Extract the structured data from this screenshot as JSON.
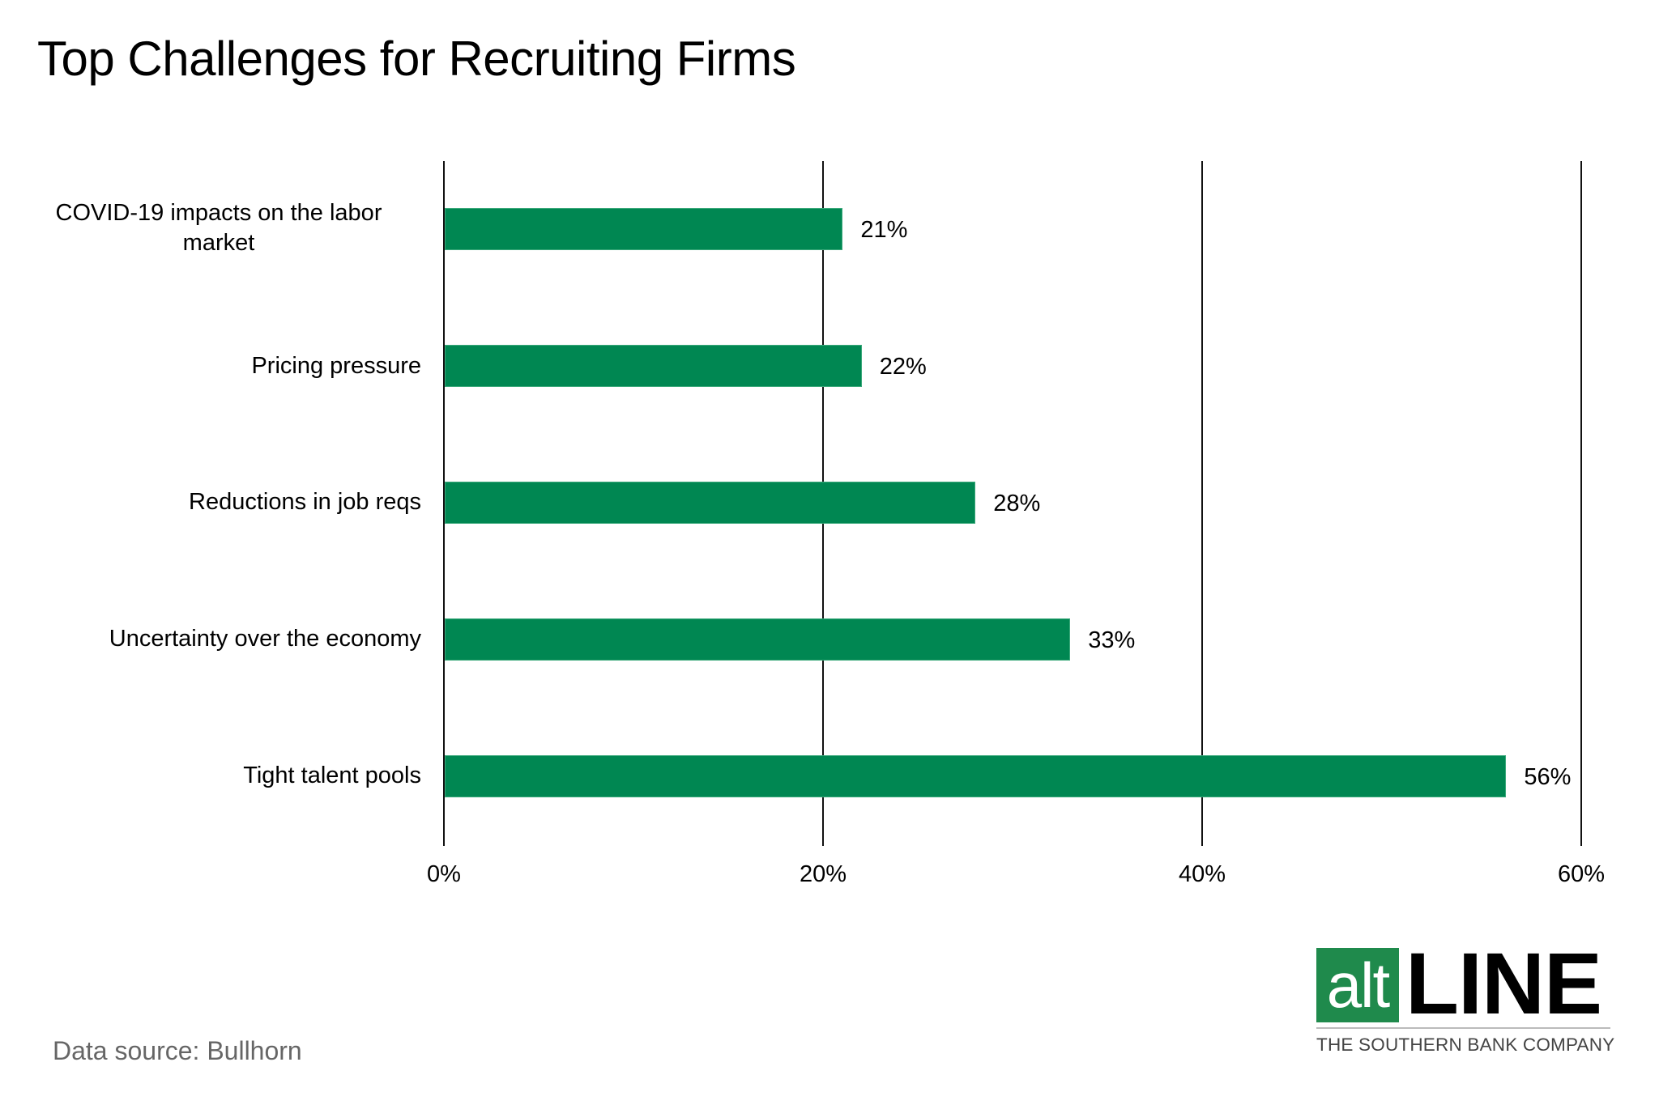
{
  "title": "Top Challenges for Recruiting Firms",
  "source": "Data source: Bullhorn",
  "logo": {
    "alt_text": "alt",
    "line_text": "LINE",
    "tagline": "THE SOUTHERN BANK COMPANY",
    "brand_color": "#1f8a4c"
  },
  "colors": {
    "bar": "#008752",
    "gridline": "#111111",
    "source_text": "#666666"
  },
  "axis": {
    "ticks": [
      "0%",
      "20%",
      "40%",
      "60%"
    ],
    "tick_values": [
      0,
      20,
      40,
      60
    ],
    "max": 60
  },
  "bars": [
    {
      "label": "COVID-19 impacts on the labor market",
      "label_lines": [
        "COVID-19 impacts on the labor",
        "market"
      ],
      "value": 21,
      "value_label": "21%"
    },
    {
      "label": "Pricing pressure",
      "label_lines": [
        "Pricing pressure"
      ],
      "value": 22,
      "value_label": "22%"
    },
    {
      "label": "Reductions in job reqs",
      "label_lines": [
        "Reductions in job reqs"
      ],
      "value": 28,
      "value_label": "28%"
    },
    {
      "label": "Uncertainty over the economy",
      "label_lines": [
        "Uncertainty over the economy"
      ],
      "value": 33,
      "value_label": "33%"
    },
    {
      "label": "Tight talent pools",
      "label_lines": [
        "Tight talent pools"
      ],
      "value": 56,
      "value_label": "56%"
    }
  ],
  "chart_data": {
    "type": "bar",
    "orientation": "horizontal",
    "title": "Top Challenges for Recruiting Firms",
    "categories": [
      "COVID-19 impacts on the labor market",
      "Pricing pressure",
      "Reductions in job reqs",
      "Uncertainty over the economy",
      "Tight talent pools"
    ],
    "values": [
      21,
      22,
      28,
      33,
      56
    ],
    "value_labels": [
      "21%",
      "22%",
      "28%",
      "33%",
      "56%"
    ],
    "xlabel": "",
    "ylabel": "",
    "xlim": [
      0,
      60
    ],
    "x_ticks": [
      "0%",
      "20%",
      "40%",
      "60%"
    ],
    "grid": "vertical gridlines at each tick",
    "legend": "none",
    "source": "Data source: Bullhorn"
  }
}
